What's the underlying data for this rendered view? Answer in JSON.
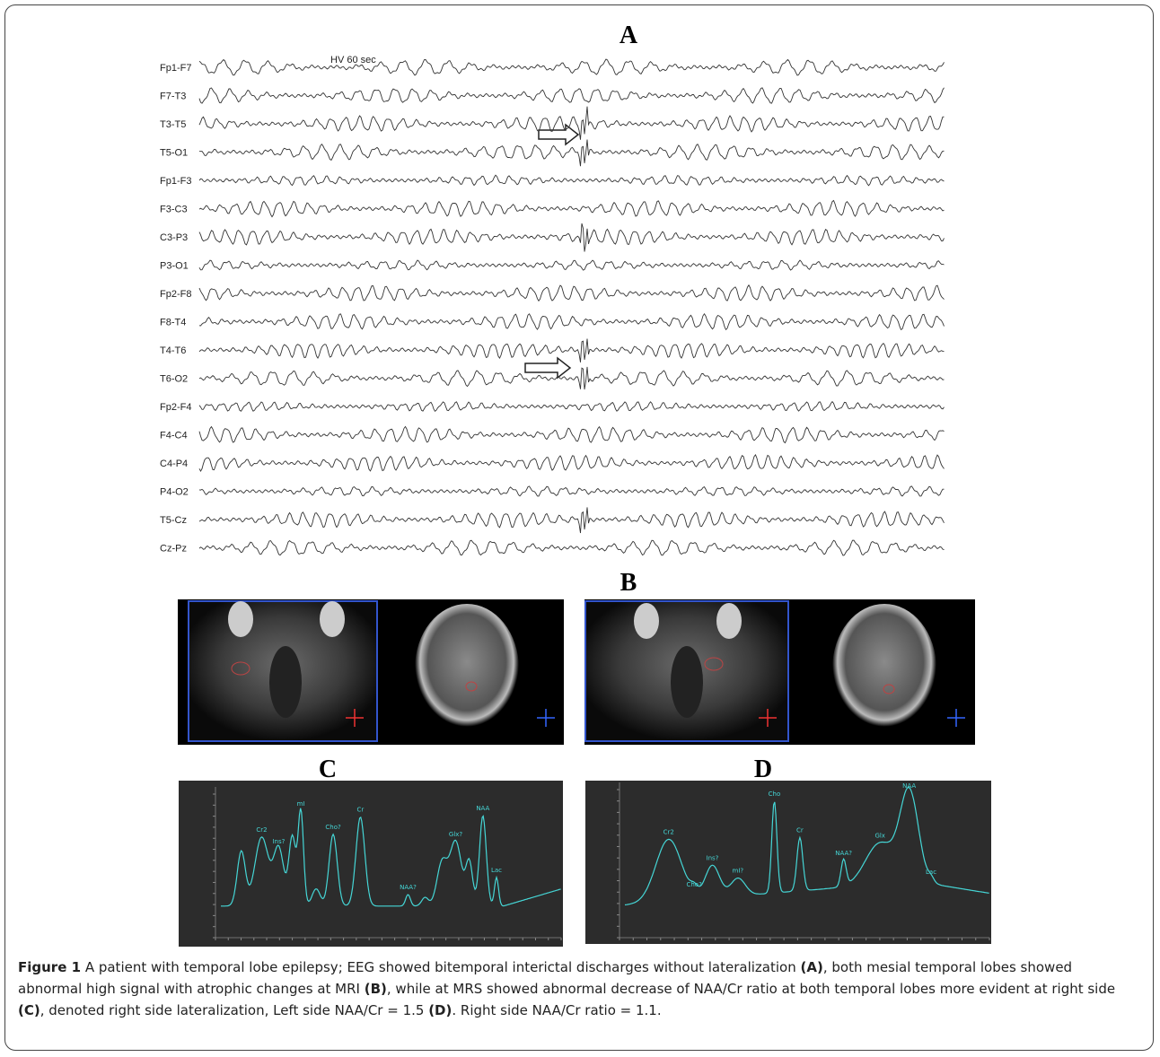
{
  "panels": {
    "a": {
      "label": "A",
      "annotation": "HV 60 sec",
      "channels": [
        "Fp1-F7",
        "F7-T3",
        "T3-T5",
        "T5-O1",
        "Fp1-F3",
        "F3-C3",
        "C3-P3",
        "P3-O1",
        "Fp2-F8",
        "F8-T4",
        "T4-T6",
        "T6-O2",
        "Fp2-F4",
        "F4-C4",
        "C4-P4",
        "P4-O2",
        "T5-Cz",
        "Cz-Pz"
      ]
    },
    "b": {
      "label": "B"
    },
    "c": {
      "label": "C",
      "peaks": [
        "Cr2",
        "Ins?",
        "mI",
        "Cho?",
        "Cr",
        "NAA?",
        "Glx?",
        "NAA",
        "Lac"
      ]
    },
    "d": {
      "label": "D",
      "peaks": [
        "Cr2",
        "Cho?",
        "Ins?",
        "mI?",
        "Cho",
        "Cr",
        "NAA?",
        "Glx",
        "NAA",
        "Lac"
      ]
    }
  },
  "caption": [
    {
      "text": "Figure 1",
      "bold": true
    },
    {
      "text": " A patient with temporal lobe epilepsy; EEG showed bitemporal interictal discharges without lateralization "
    },
    {
      "text": "(A)",
      "bold": true
    },
    {
      "text": ", both mesial temporal lobes showed abnormal high signal with atrophic changes at MRI "
    },
    {
      "text": "(B)",
      "bold": true
    },
    {
      "text": ", while at MRS showed abnormal decrease of NAA/Cr ratio at both temporal lobes more evident at right side "
    },
    {
      "text": "(C)",
      "bold": true
    },
    {
      "text": ", denoted right side lateralization, Left side NAA/Cr = 1.5 "
    },
    {
      "text": "(D)",
      "bold": true
    },
    {
      "text": ". Right side NAA/Cr ratio = 1.1."
    }
  ]
}
